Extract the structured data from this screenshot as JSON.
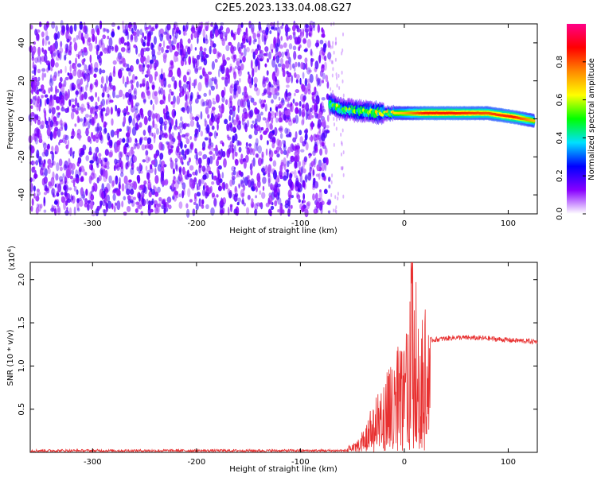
{
  "title": "C2E5.2023.133.04.08.G27",
  "chart_data": [
    {
      "type": "heatmap",
      "xlabel": "Height of straight line (km)",
      "ylabel": "Frequency (Hz)",
      "xlim": [
        -360,
        128
      ],
      "ylim": [
        -50,
        50
      ],
      "xticks": [
        -300,
        -200,
        -100,
        0,
        100
      ],
      "yticks": [
        -40,
        -20,
        0,
        20,
        40
      ],
      "noise_region_x": [
        -360,
        -72
      ],
      "signal_trace": [
        {
          "x": -72,
          "freq": 8,
          "amplitude": 0.55
        },
        {
          "x": -60,
          "freq": 5,
          "amplitude": 0.5
        },
        {
          "x": -40,
          "freq": 4,
          "amplitude": 0.55
        },
        {
          "x": -20,
          "freq": 3,
          "amplitude": 0.6
        },
        {
          "x": 0,
          "freq": 3,
          "amplitude": 0.7
        },
        {
          "x": 20,
          "freq": 3,
          "amplitude": 0.85
        },
        {
          "x": 50,
          "freq": 3,
          "amplitude": 0.85
        },
        {
          "x": 80,
          "freq": 3,
          "amplitude": 0.8
        },
        {
          "x": 105,
          "freq": 1,
          "amplitude": 0.85
        },
        {
          "x": 125,
          "freq": -1,
          "amplitude": 0.7
        }
      ],
      "colorbar": {
        "label": "Normalized spectral amplitude",
        "range": [
          0,
          1
        ],
        "ticks": [
          0.0,
          0.2,
          0.4,
          0.6,
          0.8
        ],
        "tick_labels": [
          "0.0",
          "0.2",
          "0.4",
          "0.6",
          "0.8"
        ],
        "colors": [
          "#ffffff",
          "#8800ff",
          "#0000ff",
          "#00e0ff",
          "#00ff00",
          "#ffff00",
          "#ff8800",
          "#ff0000",
          "#ff0088"
        ]
      }
    },
    {
      "type": "line",
      "xlabel": "Height of straight line (km)",
      "ylabel": "SNR (10 * v/v)",
      "scale_note": "(x10",
      "scale_exp": "4",
      "scale_close": ")",
      "xlim": [
        -360,
        128
      ],
      "ylim": [
        0,
        2.2
      ],
      "xticks": [
        -300,
        -200,
        -100,
        0,
        100
      ],
      "yticks": [
        0.5,
        1.0,
        1.5,
        2.0
      ],
      "ytick_labels": [
        "0.5",
        "1.0",
        "1.5",
        "2.0"
      ],
      "color": "#e83030",
      "envelope": {
        "x": [
          -360,
          -60,
          -45,
          -30,
          -15,
          0,
          8,
          15,
          25,
          50,
          80,
          100,
          128
        ],
        "y": [
          0.02,
          0.02,
          0.1,
          0.4,
          0.7,
          1.0,
          1.6,
          1.25,
          1.3,
          1.33,
          1.32,
          1.3,
          1.28
        ]
      }
    }
  ]
}
